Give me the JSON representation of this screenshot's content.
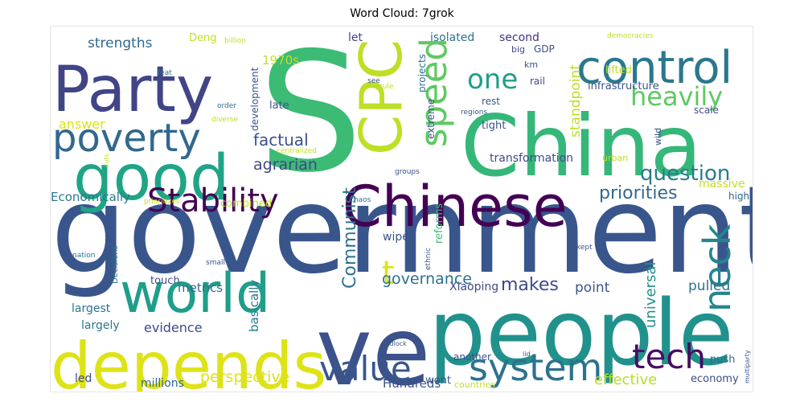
{
  "title": "Word Cloud: 7grok",
  "chart_data": {
    "type": "wordcloud",
    "title": "Word Cloud: 7grok",
    "colormap": "viridis",
    "background": "#ffffff",
    "words": [
      {
        "text": "government",
        "weight": 100,
        "color": "#39568c"
      },
      {
        "text": "S",
        "weight": 98,
        "color": "#3cbb75"
      },
      {
        "text": "China",
        "weight": 90,
        "color": "#35b779"
      },
      {
        "text": "ve",
        "weight": 86,
        "color": "#3b528b"
      },
      {
        "text": "people",
        "weight": 80,
        "color": "#21918c"
      },
      {
        "text": "depends",
        "weight": 64,
        "color": "#dde318"
      },
      {
        "text": "good",
        "weight": 62,
        "color": "#20a486"
      },
      {
        "text": "Party",
        "weight": 60,
        "color": "#414487"
      },
      {
        "text": "Chinese",
        "weight": 58,
        "color": "#440154"
      },
      {
        "text": "world",
        "weight": 56,
        "color": "#1f9e89"
      },
      {
        "text": "CPC",
        "weight": 54,
        "color": "#bddf26"
      },
      {
        "text": "control",
        "weight": 46,
        "color": "#2a788e"
      },
      {
        "text": "poverty",
        "weight": 42,
        "color": "#31688e"
      },
      {
        "text": "system",
        "weight": 38,
        "color": "#2c728e"
      },
      {
        "text": "speed",
        "weight": 38,
        "color": "#5ec962"
      },
      {
        "text": "neck",
        "weight": 38,
        "color": "#25858e"
      },
      {
        "text": "tech",
        "weight": 36,
        "color": "#470d60"
      },
      {
        "text": "value",
        "weight": 36,
        "color": "#39568c"
      },
      {
        "text": "Stability",
        "weight": 34,
        "color": "#440154"
      },
      {
        "text": "t",
        "weight": 34,
        "color": "#dde318"
      },
      {
        "text": "one",
        "weight": 30,
        "color": "#1f9e89"
      },
      {
        "text": "heavily",
        "weight": 28,
        "color": "#5ec962"
      },
      {
        "text": "question",
        "weight": 26,
        "color": "#287c8e"
      },
      {
        "text": "priorities",
        "weight": 22,
        "color": "#31688e"
      },
      {
        "text": "Communist",
        "weight": 22,
        "color": "#2c728e"
      },
      {
        "text": "makes",
        "weight": 20,
        "color": "#3e4a89"
      },
      {
        "text": "factual",
        "weight": 19,
        "color": "#3b528b"
      },
      {
        "text": "agrarian",
        "weight": 18,
        "color": "#404688"
      },
      {
        "text": "perspective",
        "weight": 18,
        "color": "#dde318"
      },
      {
        "text": "governance",
        "weight": 18,
        "color": "#2c728e"
      },
      {
        "text": "effective",
        "weight": 17,
        "color": "#b5de2b"
      },
      {
        "text": "universal",
        "weight": 17,
        "color": "#21918c"
      },
      {
        "text": "pulled",
        "weight": 16,
        "color": "#2c728e"
      },
      {
        "text": "standpoint",
        "weight": 16,
        "color": "#bddf26"
      },
      {
        "text": "strengths",
        "weight": 16,
        "color": "#31688e"
      },
      {
        "text": "point",
        "weight": 16,
        "color": "#39568c"
      },
      {
        "text": "answer",
        "weight": 15,
        "color": "#dde318"
      },
      {
        "text": "evidence",
        "weight": 15,
        "color": "#3e4a89"
      },
      {
        "text": "Economically",
        "weight": 14,
        "color": "#2a788e"
      },
      {
        "text": "Hundreds",
        "weight": 14,
        "color": "#3b528b"
      },
      {
        "text": "metrics",
        "weight": 14,
        "color": "#31688e"
      },
      {
        "text": "1970s",
        "weight": 14,
        "color": "#c2df23"
      },
      {
        "text": "basically",
        "weight": 14,
        "color": "#2a788e"
      },
      {
        "text": "largest",
        "weight": 13,
        "color": "#2c728e"
      },
      {
        "text": "led",
        "weight": 13,
        "color": "#3e4a89"
      },
      {
        "text": "largely",
        "weight": 13,
        "color": "#2a788e"
      },
      {
        "text": "wiped",
        "weight": 13,
        "color": "#3b528b"
      },
      {
        "text": "second",
        "weight": 13,
        "color": "#46337f"
      },
      {
        "text": "isolated",
        "weight": 13,
        "color": "#2c728e"
      },
      {
        "text": "let",
        "weight": 13,
        "color": "#404688"
      },
      {
        "text": "transformation",
        "weight": 13,
        "color": "#3e4a89"
      },
      {
        "text": "massive",
        "weight": 13,
        "color": "#c2df23"
      },
      {
        "text": "millions",
        "weight": 13,
        "color": "#31688e"
      },
      {
        "text": "Xiaoping",
        "weight": 13,
        "color": "#3e4a89"
      },
      {
        "text": "touch",
        "weight": 12,
        "color": "#3e4a89"
      },
      {
        "text": "tight",
        "weight": 12,
        "color": "#3b528b"
      },
      {
        "text": "economy",
        "weight": 12,
        "color": "#3e4a89"
      },
      {
        "text": "went",
        "weight": 12,
        "color": "#3b528b"
      },
      {
        "text": "push",
        "weight": 12,
        "color": "#31688e"
      },
      {
        "text": "late",
        "weight": 12,
        "color": "#3b528b"
      },
      {
        "text": "infrastructure",
        "weight": 12,
        "color": "#3b528b"
      },
      {
        "text": "Deng",
        "weight": 12,
        "color": "#c2df23"
      },
      {
        "text": "lifted",
        "weight": 12,
        "color": "#bddf26"
      },
      {
        "text": "reforms",
        "weight": 12,
        "color": "#3dbc74"
      },
      {
        "text": "combined",
        "weight": 12,
        "color": "#c2df23"
      },
      {
        "text": "projects",
        "weight": 11,
        "color": "#2c728e"
      },
      {
        "text": "development",
        "weight": 11,
        "color": "#3b528b"
      },
      {
        "text": "extreme",
        "weight": 11,
        "color": "#3b528b"
      },
      {
        "text": "rest",
        "weight": 11,
        "color": "#39568c"
      },
      {
        "text": "high",
        "weight": 11,
        "color": "#31688e"
      },
      {
        "text": "rail",
        "weight": 11,
        "color": "#3e4a89"
      },
      {
        "text": "scale",
        "weight": 11,
        "color": "#3e4a89"
      },
      {
        "text": "another",
        "weight": 11,
        "color": "#3b528b"
      },
      {
        "text": "GDP",
        "weight": 11,
        "color": "#3b528b"
      },
      {
        "text": "countries",
        "weight": 10,
        "color": "#c2df23"
      },
      {
        "text": "big",
        "weight": 10,
        "color": "#3e4a89"
      },
      {
        "text": "km",
        "weight": 10,
        "color": "#3b528b"
      },
      {
        "text": "urban",
        "weight": 10,
        "color": "#bddf26"
      },
      {
        "text": "wild",
        "weight": 10,
        "color": "#3b528b"
      },
      {
        "text": "Decisions",
        "weight": 9,
        "color": "#2c728e"
      },
      {
        "text": "billion",
        "weight": 9,
        "color": "#c2df23"
      },
      {
        "text": "democracies",
        "weight": 9,
        "color": "#c2df23"
      },
      {
        "text": "see",
        "weight": 9,
        "color": "#3b528b"
      },
      {
        "text": "regions",
        "weight": 9,
        "color": "#3b528b"
      },
      {
        "text": "centralized",
        "weight": 9,
        "color": "#c2df23"
      },
      {
        "text": "groups",
        "weight": 9,
        "color": "#3b528b"
      },
      {
        "text": "chaos",
        "weight": 9,
        "color": "#2c728e"
      },
      {
        "text": "ethnic",
        "weight": 9,
        "color": "#3b528b"
      },
      {
        "text": "kept",
        "weight": 9,
        "color": "#3b528b"
      },
      {
        "text": "diverse",
        "weight": 9,
        "color": "#c2df23"
      },
      {
        "text": "order",
        "weight": 9,
        "color": "#2c728e"
      },
      {
        "text": "prioritizes",
        "weight": 9,
        "color": "#c2df23"
      },
      {
        "text": "nation",
        "weight": 9,
        "color": "#2c728e"
      },
      {
        "text": "small",
        "weight": 9,
        "color": "#3b528b"
      },
      {
        "text": "rule",
        "weight": 9,
        "color": "#c2df23"
      },
      {
        "text": "feat",
        "weight": 9,
        "color": "#2c728e"
      },
      {
        "text": "cuts",
        "weight": 8,
        "color": "#bddf26"
      },
      {
        "text": "gridlock",
        "weight": 8,
        "color": "#3b528b"
      },
      {
        "text": "lid",
        "weight": 8,
        "color": "#3b528b"
      },
      {
        "text": "multiparty",
        "weight": 8,
        "color": "#3b528b"
      }
    ]
  }
}
